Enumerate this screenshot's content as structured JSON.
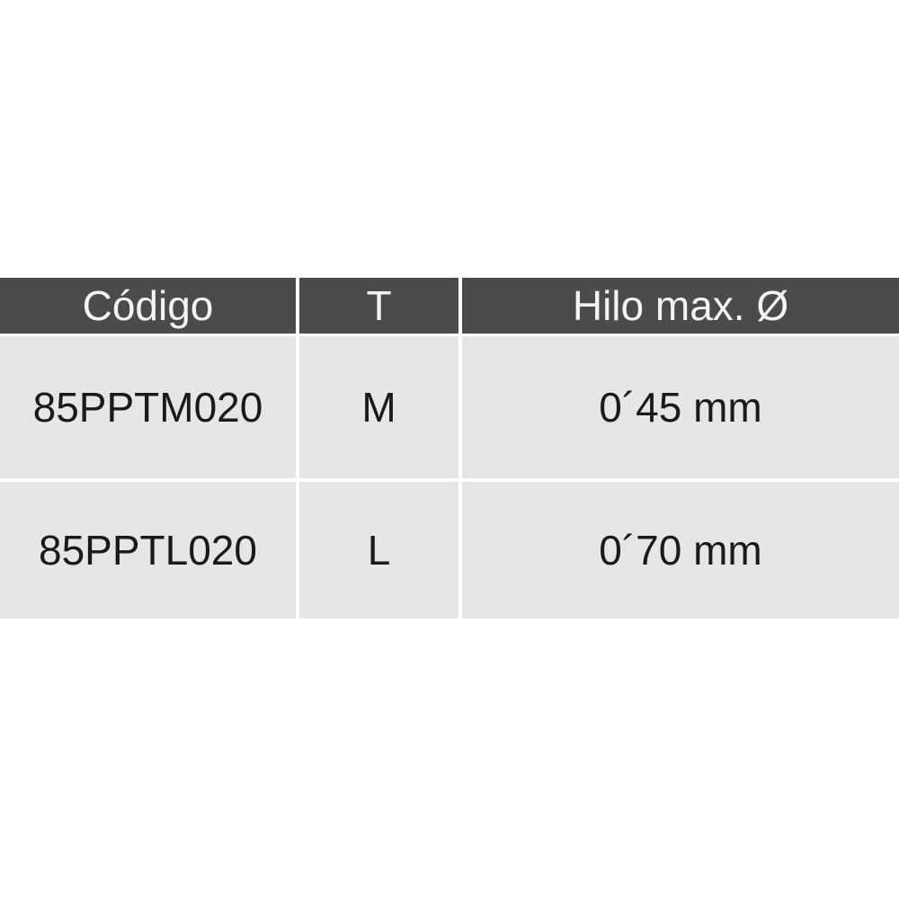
{
  "table": {
    "headers": [
      "Código",
      "T",
      "Hilo max. Ø"
    ],
    "rows": [
      [
        "85PPTM020",
        "M",
        "0´45 mm"
      ],
      [
        "85PPTL020",
        "L",
        "0´70 mm"
      ]
    ]
  },
  "colors": {
    "header_bg": "#4b4b4d",
    "header_text": "#f4f4f4",
    "cell_bg": "#e6e6e8",
    "cell_text": "#1a1a1a"
  }
}
